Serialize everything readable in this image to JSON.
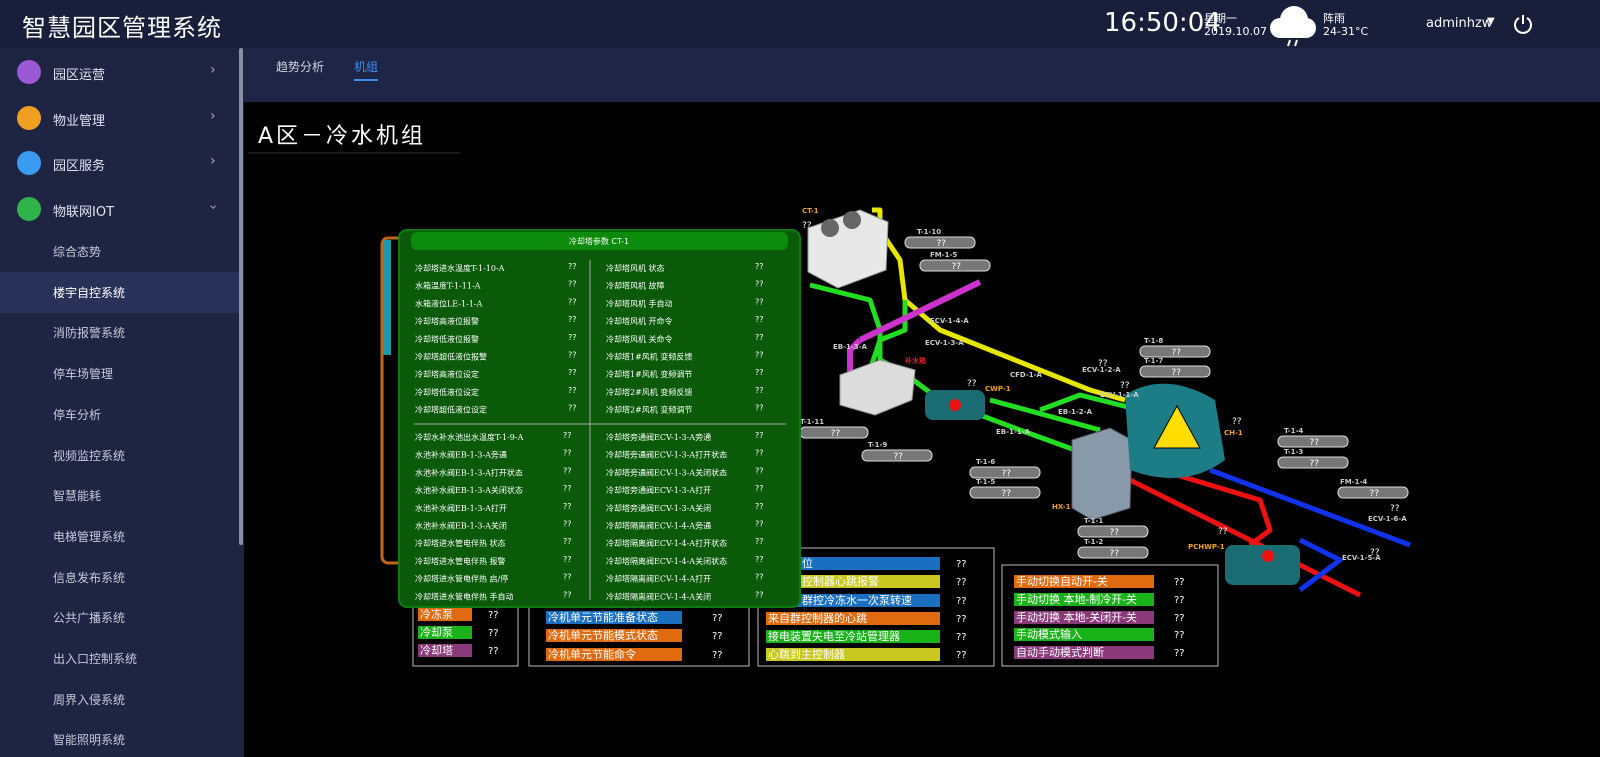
{
  "header": {
    "title": "智慧园区管理系统",
    "time": "16:50:04",
    "weekday": "星期一",
    "date": "2019.10.07",
    "weather": "阵雨",
    "temperature": "24-31°C",
    "user": "adminhzw"
  },
  "sidebar": {
    "menus": [
      {
        "label": "园区运营",
        "color": "#9b59d6"
      },
      {
        "label": "物业管理",
        "color": "#f0a020"
      },
      {
        "label": "园区服务",
        "color": "#3a9bf0"
      },
      {
        "label": "物联网IOT",
        "color": "#2fb34a"
      }
    ],
    "items": [
      "综合态势",
      "楼宇自控系统",
      "消防报警系统",
      "停车场管理",
      "停车分析",
      "视频监控系统",
      "智慧能耗",
      "电梯管理系统",
      "信息发布系统",
      "公共广播系统",
      "出入口控制系统",
      "周界入侵系统",
      "智能照明系统"
    ],
    "active_item": 1
  },
  "tabs": {
    "items": [
      "趋势分析",
      "机组"
    ],
    "active": 1
  },
  "panel": {
    "title": "A区－冷水机组"
  },
  "params": {
    "title": "冷却塔参数 CT-1",
    "upper_left": [
      {
        "label": "冷却塔进水温度T-1-10-A",
        "value": "??"
      },
      {
        "label": "水箱温度T-1-11-A",
        "value": "??"
      },
      {
        "label": "水箱液位LE-1-1-A",
        "value": "??"
      },
      {
        "label": "冷却塔高液位报警",
        "value": "??"
      },
      {
        "label": "冷却塔低液位报警",
        "value": "??"
      },
      {
        "label": "冷却塔超低液位报警",
        "value": "??"
      },
      {
        "label": "冷却塔高液位设定",
        "value": "??"
      },
      {
        "label": "冷却塔低液位设定",
        "value": "??"
      },
      {
        "label": "冷却塔超低液位设定",
        "value": "??"
      }
    ],
    "upper_right": [
      {
        "label": "冷却塔风机 状态",
        "value": "??"
      },
      {
        "label": "冷却塔风机 故障",
        "value": "??"
      },
      {
        "label": "冷却塔风机 手自动",
        "value": "??"
      },
      {
        "label": "冷却塔风机 开命令",
        "value": "??"
      },
      {
        "label": "冷却塔风机 关命令",
        "value": "??"
      },
      {
        "label": "冷却塔1#风机 变频反馈",
        "value": "??"
      },
      {
        "label": "冷却塔1#风机 变频调节",
        "value": "??"
      },
      {
        "label": "冷却塔2#风机 变频反馈",
        "value": "??"
      },
      {
        "label": "冷却塔2#风机 变频调节",
        "value": "??"
      }
    ],
    "lower_left": [
      {
        "label": "冷却水补水池出水温度T-1-9-A",
        "value": "??"
      },
      {
        "label": "水池补水阀EB-1-3-A旁通",
        "value": "??"
      },
      {
        "label": "水池补水阀EB-1-3-A打开状态",
        "value": "??"
      },
      {
        "label": "水池补水阀EB-1-3-A关闭状态",
        "value": "??"
      },
      {
        "label": "水池补水阀EB-1-3-A打开",
        "value": "??"
      },
      {
        "label": "水池补水阀EB-1-3-A关闭",
        "value": "??"
      },
      {
        "label": "冷却塔进水管电伴热 状态",
        "value": "??"
      },
      {
        "label": "冷却塔进水管电伴热 报警",
        "value": "??"
      },
      {
        "label": "冷却塔进水管电伴热 启/停",
        "value": "??"
      },
      {
        "label": "冷却塔进水管电伴热 手自动",
        "value": "??"
      }
    ],
    "lower_right": [
      {
        "label": "冷却塔旁通阀ECV-1-3-A旁通",
        "value": "??"
      },
      {
        "label": "冷却塔旁通阀ECV-1-3-A打开状态",
        "value": "??"
      },
      {
        "label": "冷却塔旁通阀ECV-1-3-A关闭状态",
        "value": "??"
      },
      {
        "label": "冷却塔旁通阀ECV-1-3-A打开",
        "value": "??"
      },
      {
        "label": "冷却塔旁通阀ECV-1-3-A关闭",
        "value": "??"
      },
      {
        "label": "冷却塔隔离阀ECV-1-4-A旁通",
        "value": "??"
      },
      {
        "label": "冷却塔隔离阀ECV-1-4-A打开状态",
        "value": "??"
      },
      {
        "label": "冷却塔隔离阀ECV-1-4-A关闭状态",
        "value": "??"
      },
      {
        "label": "冷却塔隔离阀ECV-1-4-A打开",
        "value": "??"
      },
      {
        "label": "冷却塔隔离阀ECV-1-4-A关闭",
        "value": "??"
      }
    ]
  },
  "legend_groups": [
    [
      {
        "label": "冷冻泵",
        "value": "??",
        "color": "#e06a10"
      },
      {
        "label": "冷却泵",
        "value": "??",
        "color": "#19b319"
      },
      {
        "label": "冷却塔",
        "value": "??",
        "color": "#8a3a7a"
      }
    ],
    [
      {
        "label": "冷机单元节能准备状态",
        "value": "??",
        "color": "#1a6fc0"
      },
      {
        "label": "冷机单元节能模式状态",
        "value": "??",
        "color": "#e06a10"
      },
      {
        "label": "冷机单元节能命令",
        "value": "??",
        "color": "#e06a10"
      }
    ],
    [
      {
        "label": "位",
        "value": "??",
        "color": "#1a6fc0"
      },
      {
        "label": "控制器心跳报警",
        "value": "??",
        "color": "#c8c820"
      },
      {
        "label": "群控冷冻水一次泵转速",
        "value": "??",
        "color": "#1a6fc0"
      },
      {
        "label": "来自群控制器的心跳",
        "value": "??",
        "color": "#e06a10"
      },
      {
        "label": "接电装置失电至冷站管理器",
        "value": "??",
        "color": "#19b319"
      },
      {
        "label": "心跳到主控制器",
        "value": "??",
        "color": "#c8c820"
      }
    ],
    [
      {
        "label": "手动切换自动开-关",
        "value": "??",
        "color": "#e06a10"
      },
      {
        "label": "手动切换 本地-制冷开-关",
        "value": "??",
        "color": "#19b319"
      },
      {
        "label": "手动切换 本地-关闭开-关",
        "value": "??",
        "color": "#8a3a7a"
      },
      {
        "label": "手动模式输入",
        "value": "??",
        "color": "#19b319"
      },
      {
        "label": "自动手动模式判断",
        "value": "??",
        "color": "#8a3a7a"
      }
    ]
  ],
  "tags": [
    {
      "label": "CT-1",
      "value": "??"
    },
    {
      "label": "T-1-10",
      "value": "??"
    },
    {
      "label": "FM-1-5",
      "value": "??"
    },
    {
      "label": "ECV-1-4-A"
    },
    {
      "label": "ECV-1-3-A"
    },
    {
      "label": "EB-1-3-A"
    },
    {
      "label": "补水箱"
    },
    {
      "label": "CWP-1",
      "value": "??"
    },
    {
      "label": "CFD-1-A"
    },
    {
      "label": "EB-1-2-A"
    },
    {
      "label": "EB-1-1-A"
    },
    {
      "label": "ECV-1-2-A",
      "value": "??"
    },
    {
      "label": "ECV-1-1-A",
      "value": "??"
    },
    {
      "label": "T-1-8",
      "value": "??"
    },
    {
      "label": "T-1-7",
      "value": "??"
    },
    {
      "label": "CH-1",
      "value": "??"
    },
    {
      "label": "T-1-11",
      "value": "??"
    },
    {
      "label": "T-1-9",
      "value": "??"
    },
    {
      "label": "T-1-6",
      "value": "??"
    },
    {
      "label": "T-1-5",
      "value": "??"
    },
    {
      "label": "HX-1"
    },
    {
      "label": "T-1-1",
      "value": "??"
    },
    {
      "label": "T-1-2",
      "value": "??"
    },
    {
      "label": "T-1-4",
      "value": "??"
    },
    {
      "label": "T-1-3",
      "value": "??"
    },
    {
      "label": "FM-1-4",
      "value": "??"
    },
    {
      "label": "ECV-1-6-A",
      "value": "??"
    },
    {
      "label": "ECV-1-5-A",
      "value": "??"
    },
    {
      "label": "PCHWP-1"
    },
    {
      "label": "",
      "value": "??"
    }
  ]
}
